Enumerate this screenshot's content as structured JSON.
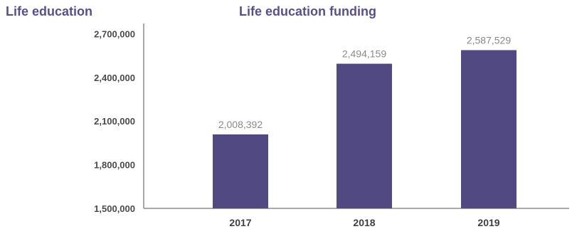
{
  "section_title": "Life education",
  "chart_data": {
    "type": "bar",
    "title": "Life education funding",
    "xlabel": "",
    "ylabel": "",
    "categories": [
      "2017",
      "2018",
      "2019"
    ],
    "values": [
      2008392,
      2494159,
      2587529
    ],
    "data_labels": [
      "2,008,392",
      "2,494,159",
      "2,587,529"
    ],
    "yticks": [
      1500000,
      1800000,
      2100000,
      2400000,
      2700000
    ],
    "ytick_labels": [
      "1,500,000",
      "1,800,000",
      "2,100,000",
      "2,400,000",
      "2,700,000"
    ],
    "ylim": [
      1500000,
      2800000
    ],
    "grid": false,
    "legend": "none",
    "bar_color": "#514a82",
    "axis_color": "#555555"
  }
}
